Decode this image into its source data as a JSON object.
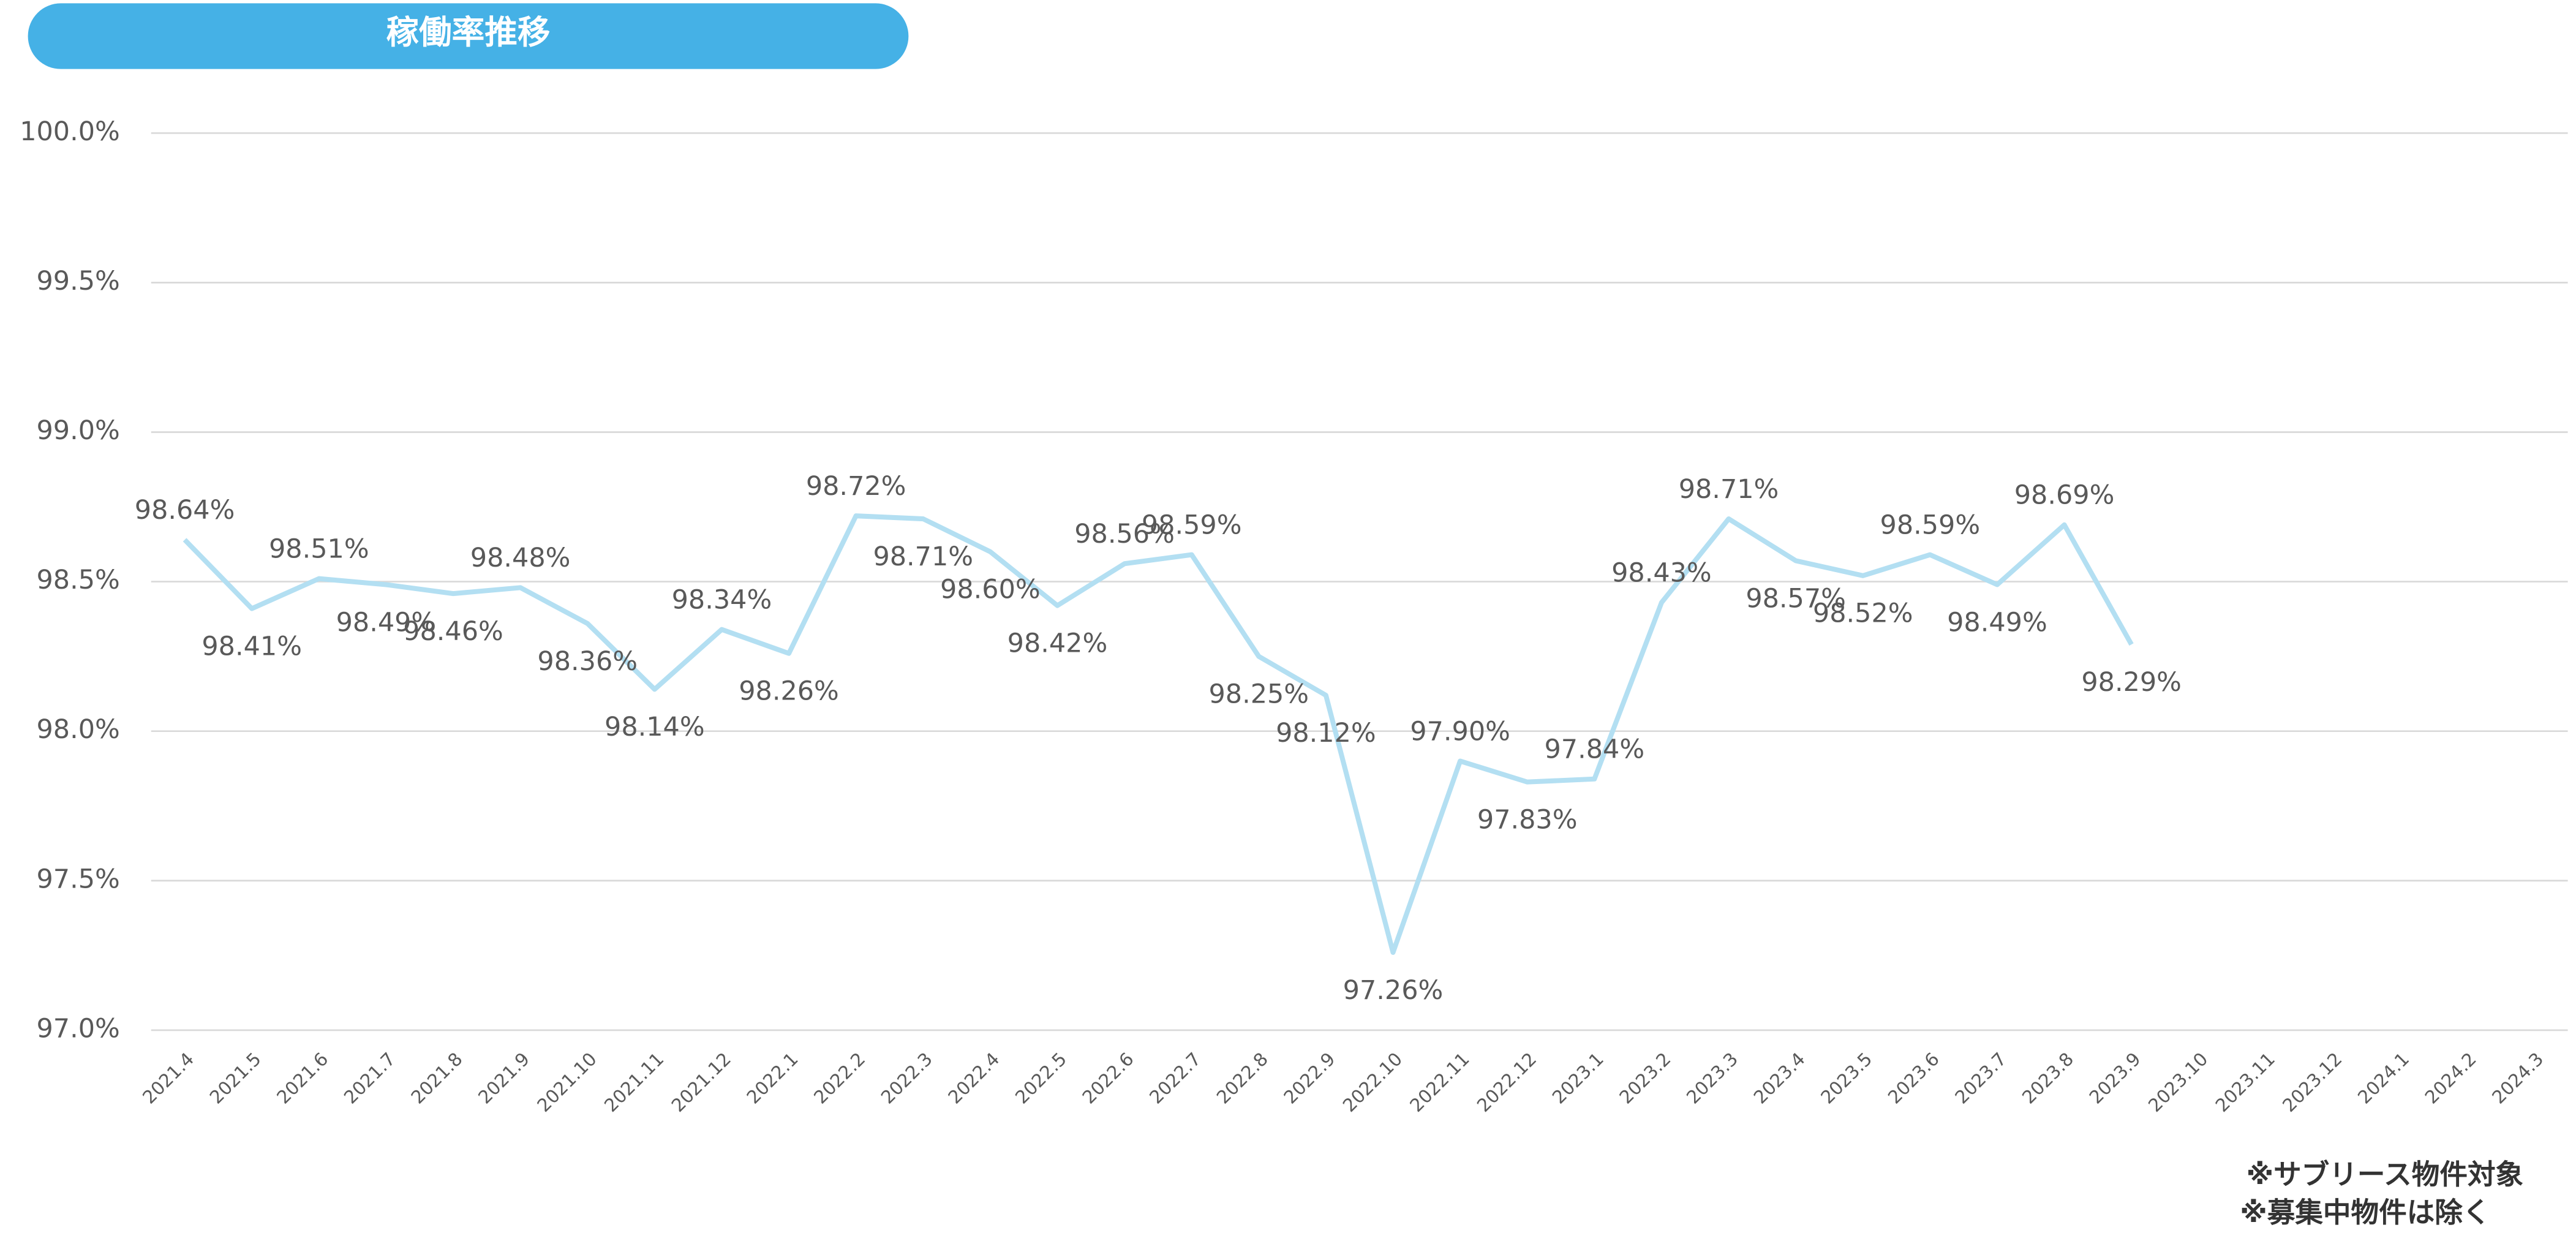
{
  "chart_data": {
    "type": "line",
    "title": "稼働率推移",
    "categories": [
      "2021.4",
      "2021.5",
      "2021.6",
      "2021.7",
      "2021.8",
      "2021.9",
      "2021.10",
      "2021.11",
      "2021.12",
      "2022.1",
      "2022.2",
      "2022.3",
      "2022.4",
      "2022.5",
      "2022.6",
      "2022.7",
      "2022.8",
      "2022.9",
      "2022.10",
      "2022.11",
      "2022.12",
      "2023.1",
      "2023.2",
      "2023.3",
      "2023.4",
      "2023.5",
      "2023.6",
      "2023.7",
      "2023.8",
      "2023.9",
      "2023.10",
      "2023.11",
      "2023.12",
      "2024.1",
      "2024.2",
      "2024.3"
    ],
    "series": [
      {
        "name": "稼働率",
        "color": "#b3dff2",
        "values": [
          98.64,
          98.41,
          98.51,
          98.49,
          98.46,
          98.48,
          98.36,
          98.14,
          98.34,
          98.26,
          98.72,
          98.71,
          98.6,
          98.42,
          98.56,
          98.59,
          98.25,
          98.12,
          97.26,
          97.9,
          97.83,
          97.84,
          98.43,
          98.71,
          98.57,
          98.52,
          98.59,
          98.49,
          98.69,
          98.29,
          null,
          null,
          null,
          null,
          null,
          null
        ],
        "value_labels": [
          "98.64%",
          "98.41%",
          "98.51%",
          "98.49%",
          "98.46%",
          "98.48%",
          "98.36%",
          "98.14%",
          "98.34%",
          "98.26%",
          "98.72%",
          "98.71%",
          "98.60%",
          "98.42%",
          "98.56%",
          "98.59%",
          "98.25%",
          "98.12%",
          "97.26%",
          "97.90%",
          "97.83%",
          "97.84%",
          "98.43%",
          "98.71%",
          "98.57%",
          "98.52%",
          "98.59%",
          "98.49%",
          "98.69%",
          "98.29%",
          null,
          null,
          null,
          null,
          null,
          null
        ]
      }
    ],
    "ylim": [
      97.0,
      100.0
    ],
    "yticks": [
      {
        "value": 97.0,
        "label": "97.0%"
      },
      {
        "value": 97.5,
        "label": "97.5%"
      },
      {
        "value": 98.0,
        "label": "98.0%"
      },
      {
        "value": 98.5,
        "label": "98.5%"
      },
      {
        "value": 99.0,
        "label": "99.0%"
      },
      {
        "value": 99.5,
        "label": "99.5%"
      },
      {
        "value": 100.0,
        "label": "100.0%"
      }
    ],
    "grid": true,
    "notes": [
      "※サブリース物件対象",
      "※募集中物件は除く"
    ]
  }
}
